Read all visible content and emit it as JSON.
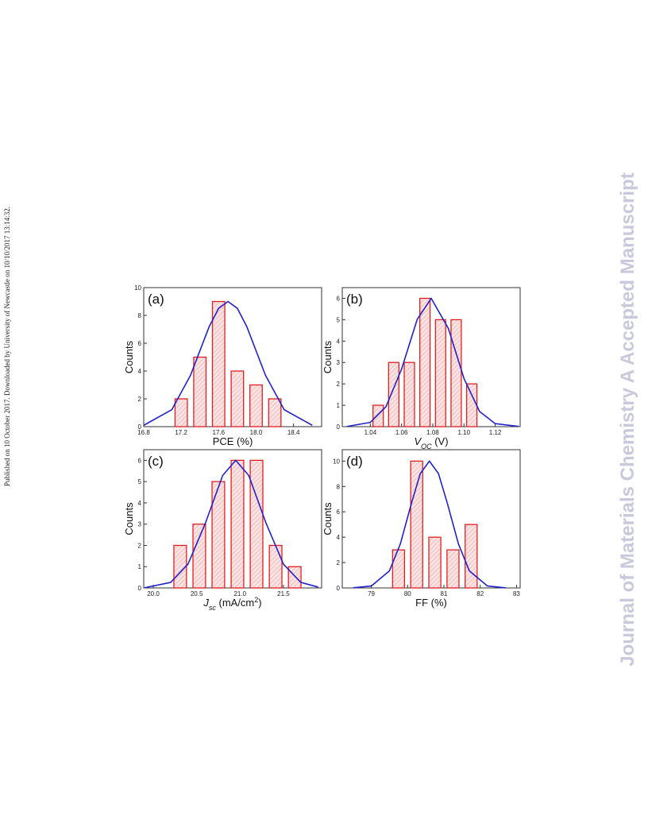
{
  "side_note": "Published on 10 October 2017. Downloaded by University of Newcastle on 10/10/2017 13:14:32.",
  "watermark": "Journal of Materials Chemistry A Accepted Manuscript",
  "chart_data": [
    {
      "type": "histogram",
      "panel_label": "(a)",
      "xlabel": "PCE (%)",
      "ylabel": "Counts",
      "bins": [
        17.1,
        17.3,
        17.5,
        17.7,
        17.9,
        18.1,
        18.3
      ],
      "counts": [
        2,
        5,
        9,
        4,
        3,
        2
      ],
      "color": "#e02020",
      "fit": {
        "color": "#2222cc",
        "x": [
          16.8,
          17.1,
          17.3,
          17.5,
          17.6,
          17.7,
          17.8,
          17.9,
          18.1,
          18.3,
          18.6
        ],
        "values": [
          0.1,
          1.22,
          3.7,
          7.21,
          8.51,
          9,
          8.51,
          7.21,
          3.7,
          1.22,
          0.1
        ]
      },
      "xlim": [
        16.8,
        18.7
      ],
      "ylim": [
        0,
        10
      ],
      "xticks": [
        16.8,
        17.2,
        17.6,
        {
          "value": 18,
          "label": "18.0"
        },
        18.4
      ],
      "yticks": [
        0,
        2,
        4,
        6,
        8,
        10
      ]
    },
    {
      "type": "histogram",
      "panel_label": "(b)",
      "xlabel_parts": [
        {
          "text": "V",
          "style": "italic"
        },
        {
          "text": "OC",
          "style": "sub"
        },
        {
          "text": " (V)"
        }
      ],
      "ylabel": "Counts",
      "bins": [
        1.04,
        1.05,
        1.06,
        1.07,
        1.08,
        1.09,
        1.1,
        1.11
      ],
      "counts": [
        1,
        3,
        3,
        6,
        5,
        5,
        2
      ],
      "color": "#e02020",
      "fit": {
        "color": "#2222cc",
        "x": [
          1.025,
          1.04,
          1.05,
          1.06,
          1.07,
          1.079,
          1.09,
          1.1,
          1.11,
          1.12,
          1.135
        ],
        "values": [
          0.01,
          0.2,
          0.93,
          2.69,
          5.01,
          6,
          4.59,
          2.25,
          0.71,
          0.14,
          0.01
        ]
      },
      "xlim": [
        1.022,
        1.136
      ],
      "ylim": [
        0,
        6.5
      ],
      "xticks": [
        1.04,
        1.06,
        1.08,
        {
          "value": 1.1,
          "label": "1.10"
        },
        1.12
      ],
      "yticks": [
        0,
        1,
        2,
        3,
        4,
        5,
        6
      ]
    },
    {
      "type": "histogram",
      "panel_label": "(c)",
      "xlabel_parts": [
        {
          "text": "J",
          "style": "italic"
        },
        {
          "text": "sc",
          "style": "sub"
        },
        {
          "text": " (mA/cm"
        },
        {
          "text": "2",
          "style": "sup"
        },
        {
          "text": ")"
        }
      ],
      "ylabel": "Counts",
      "bins": [
        20.2,
        20.42,
        20.64,
        20.86,
        21.08,
        21.3,
        21.52,
        21.74
      ],
      "counts": [
        2,
        3,
        5,
        6,
        6,
        2,
        1
      ],
      "color": "#e02020",
      "fit": {
        "color": "#2222cc",
        "x": [
          19.9,
          20.2,
          20.4,
          20.6,
          20.8,
          20.95,
          21.1,
          21.3,
          21.5,
          21.7,
          21.9
        ],
        "values": [
          0.01,
          0.26,
          1.12,
          3.04,
          5.29,
          6,
          5.29,
          3.04,
          1.12,
          0.26,
          0.04
        ]
      },
      "xlim": [
        19.89,
        21.94
      ],
      "ylim": [
        0,
        6.5
      ],
      "xticks": [
        {
          "value": 20,
          "label": "20.0"
        },
        20.5,
        {
          "value": 21,
          "label": "21.0"
        },
        21.5
      ],
      "yticks": [
        0,
        1,
        2,
        3,
        4,
        5,
        6
      ]
    },
    {
      "type": "histogram",
      "panel_label": "(d)",
      "xlabel": "FF (%)",
      "ylabel": "Counts",
      "bins": [
        79.5,
        80,
        80.5,
        81,
        81.5,
        82
      ],
      "counts": [
        3,
        10,
        4,
        3,
        5
      ],
      "color": "#e02020",
      "fit": {
        "color": "#2222cc",
        "x": [
          78.5,
          79,
          79.5,
          79.8,
          80.1,
          80.35,
          80.6,
          80.85,
          81.1,
          81.4,
          81.7,
          82.2,
          82.7
        ],
        "values": [
          0.01,
          0.15,
          1.35,
          3.47,
          6.62,
          9.02,
          10,
          9.02,
          6.62,
          3.47,
          1.35,
          0.15,
          0.01
        ]
      },
      "xlim": [
        78.2,
        83.1
      ],
      "ylim": [
        0,
        10.9
      ],
      "xticks": [
        79,
        80,
        81,
        82,
        83
      ],
      "yticks": [
        0,
        2,
        4,
        6,
        8,
        10
      ]
    }
  ]
}
